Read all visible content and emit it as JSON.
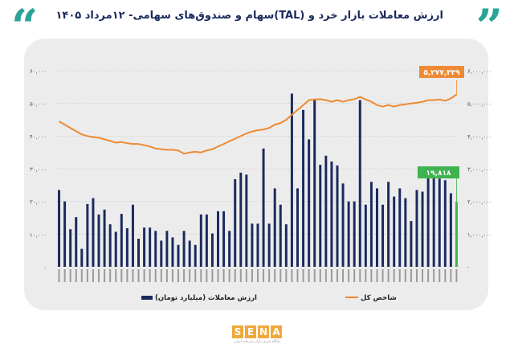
{
  "header": {
    "title": "ارزش معاملات بازار خرد و (TAL)سهام و صندوق‌های سهامی- ۱۲مرداد ۱۴۰۵",
    "quote_mark_left": "“",
    "quote_mark_right": "”"
  },
  "footer": {
    "logo_letters": [
      "S",
      "E",
      "N",
      "A"
    ],
    "logo_sub": "پایگاه خبری بازار سرمایه ایران"
  },
  "colors": {
    "bars": "#1a2a5e",
    "last_bar": "#3fb34f",
    "index_line": "#ee8a34",
    "quote_marks": "#2aa39a",
    "title_text": "#1a2a5e",
    "title_date": "#e98a2b",
    "grid": "#c8c8c8",
    "card": "#ececec"
  },
  "chart_data": {
    "type": "bar",
    "left_axis": {
      "ticks": [
        "۰",
        "۱۰,۰۰۰",
        "۲۰,۰۰۰",
        "۳۰,۰۰۰",
        "۴۰,۰۰۰",
        "۵۰,۰۰۰",
        "۶۰,۰۰۰"
      ],
      "ylim": [
        0,
        60000
      ]
    },
    "right_axis": {
      "ticks": [
        "-",
        "۱,۰۰۰,۰۰۰",
        "۲,۰۰۰,۰۰۰",
        "۳,۰۰۰,۰۰۰",
        "۴,۰۰۰,۰۰۰",
        "۵,۰۰۰,۰۰۰",
        "۶,۰۰۰,۰۰۰"
      ],
      "ylim": [
        0,
        6000000
      ]
    },
    "series": [
      {
        "name": "ارزش معاملات (میلیارد تومان)",
        "axis": "left",
        "kind": "bar",
        "values": [
          23500,
          20000,
          11500,
          15200,
          5500,
          19200,
          21000,
          16000,
          17500,
          13000,
          10700,
          16200,
          11800,
          19000,
          8600,
          12000,
          12000,
          11000,
          8000,
          11000,
          9000,
          6700,
          11000,
          8000,
          6700,
          16000,
          16000,
          10200,
          17000,
          17000,
          11000,
          26800,
          28800,
          28200,
          13200,
          13200,
          36200,
          13200,
          24000,
          19000,
          13000,
          53000,
          24000,
          48000,
          39000,
          51000,
          31200,
          34000,
          32200,
          31000,
          25500,
          20000,
          20000,
          51000,
          19000,
          26000,
          24000,
          19000,
          26000,
          21500,
          24000,
          21000,
          14000,
          23500,
          23000,
          30000,
          29800,
          27000,
          26500,
          22500,
          19818
        ],
        "last_label": "۱۹,۸۱۸"
      },
      {
        "name": "شاخص کل",
        "axis": "right",
        "kind": "line",
        "values": [
          4450000,
          4350000,
          4250000,
          4150000,
          4050000,
          4000000,
          3970000,
          3950000,
          3900000,
          3850000,
          3800000,
          3820000,
          3780000,
          3760000,
          3760000,
          3720000,
          3680000,
          3620000,
          3600000,
          3580000,
          3580000,
          3560000,
          3460000,
          3500000,
          3520000,
          3500000,
          3560000,
          3600000,
          3680000,
          3760000,
          3840000,
          3920000,
          4000000,
          4080000,
          4140000,
          4180000,
          4200000,
          4250000,
          4350000,
          4400000,
          4500000,
          4650000,
          4800000,
          4950000,
          5100000,
          5120000,
          5130000,
          5100000,
          5050000,
          5100000,
          5050000,
          5100000,
          5130000,
          5200000,
          5120000,
          5050000,
          4950000,
          4900000,
          4950000,
          4900000,
          4950000,
          4970000,
          5000000,
          5020000,
          5050000,
          5100000,
          5100000,
          5120000,
          5080000,
          5150000,
          5277339
        ],
        "last_label": "۵,۲۷۷,۳۳۹"
      }
    ],
    "legend": {
      "position": "bottom",
      "bar_label": "ارزش معاملات (میلیارد تومان)",
      "line_label": "شاخص کل"
    },
    "grid": true
  }
}
